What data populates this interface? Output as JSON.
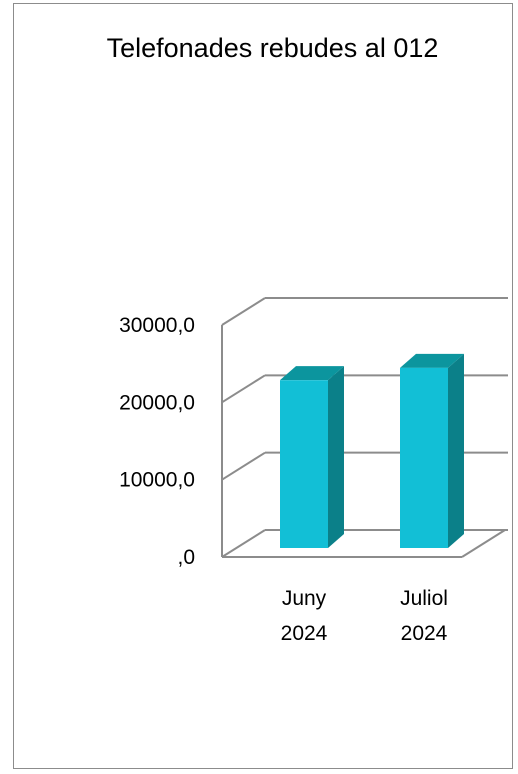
{
  "chart_data": {
    "type": "bar",
    "title": "Telefonades rebudes al 012",
    "categories": [
      "Juny 2024",
      "Juliol 2024"
    ],
    "category_lines": [
      [
        "Juny",
        "2024"
      ],
      [
        "Juliol",
        "2024"
      ]
    ],
    "series": [
      {
        "values": [
          21700,
          23300
        ]
      }
    ],
    "ylim": [
      0,
      30000
    ],
    "yticks": [
      0,
      10000,
      20000,
      30000
    ],
    "ytick_labels": [
      ",0",
      "10000,0",
      "20000,0",
      "30000,0"
    ],
    "grid": true,
    "three_d": true,
    "legend": "none",
    "colors": {
      "bar_front": "#12bfd6",
      "bar_side": "#0b8089",
      "bar_top": "#0c959e",
      "grid": "#8c8c8c"
    }
  }
}
